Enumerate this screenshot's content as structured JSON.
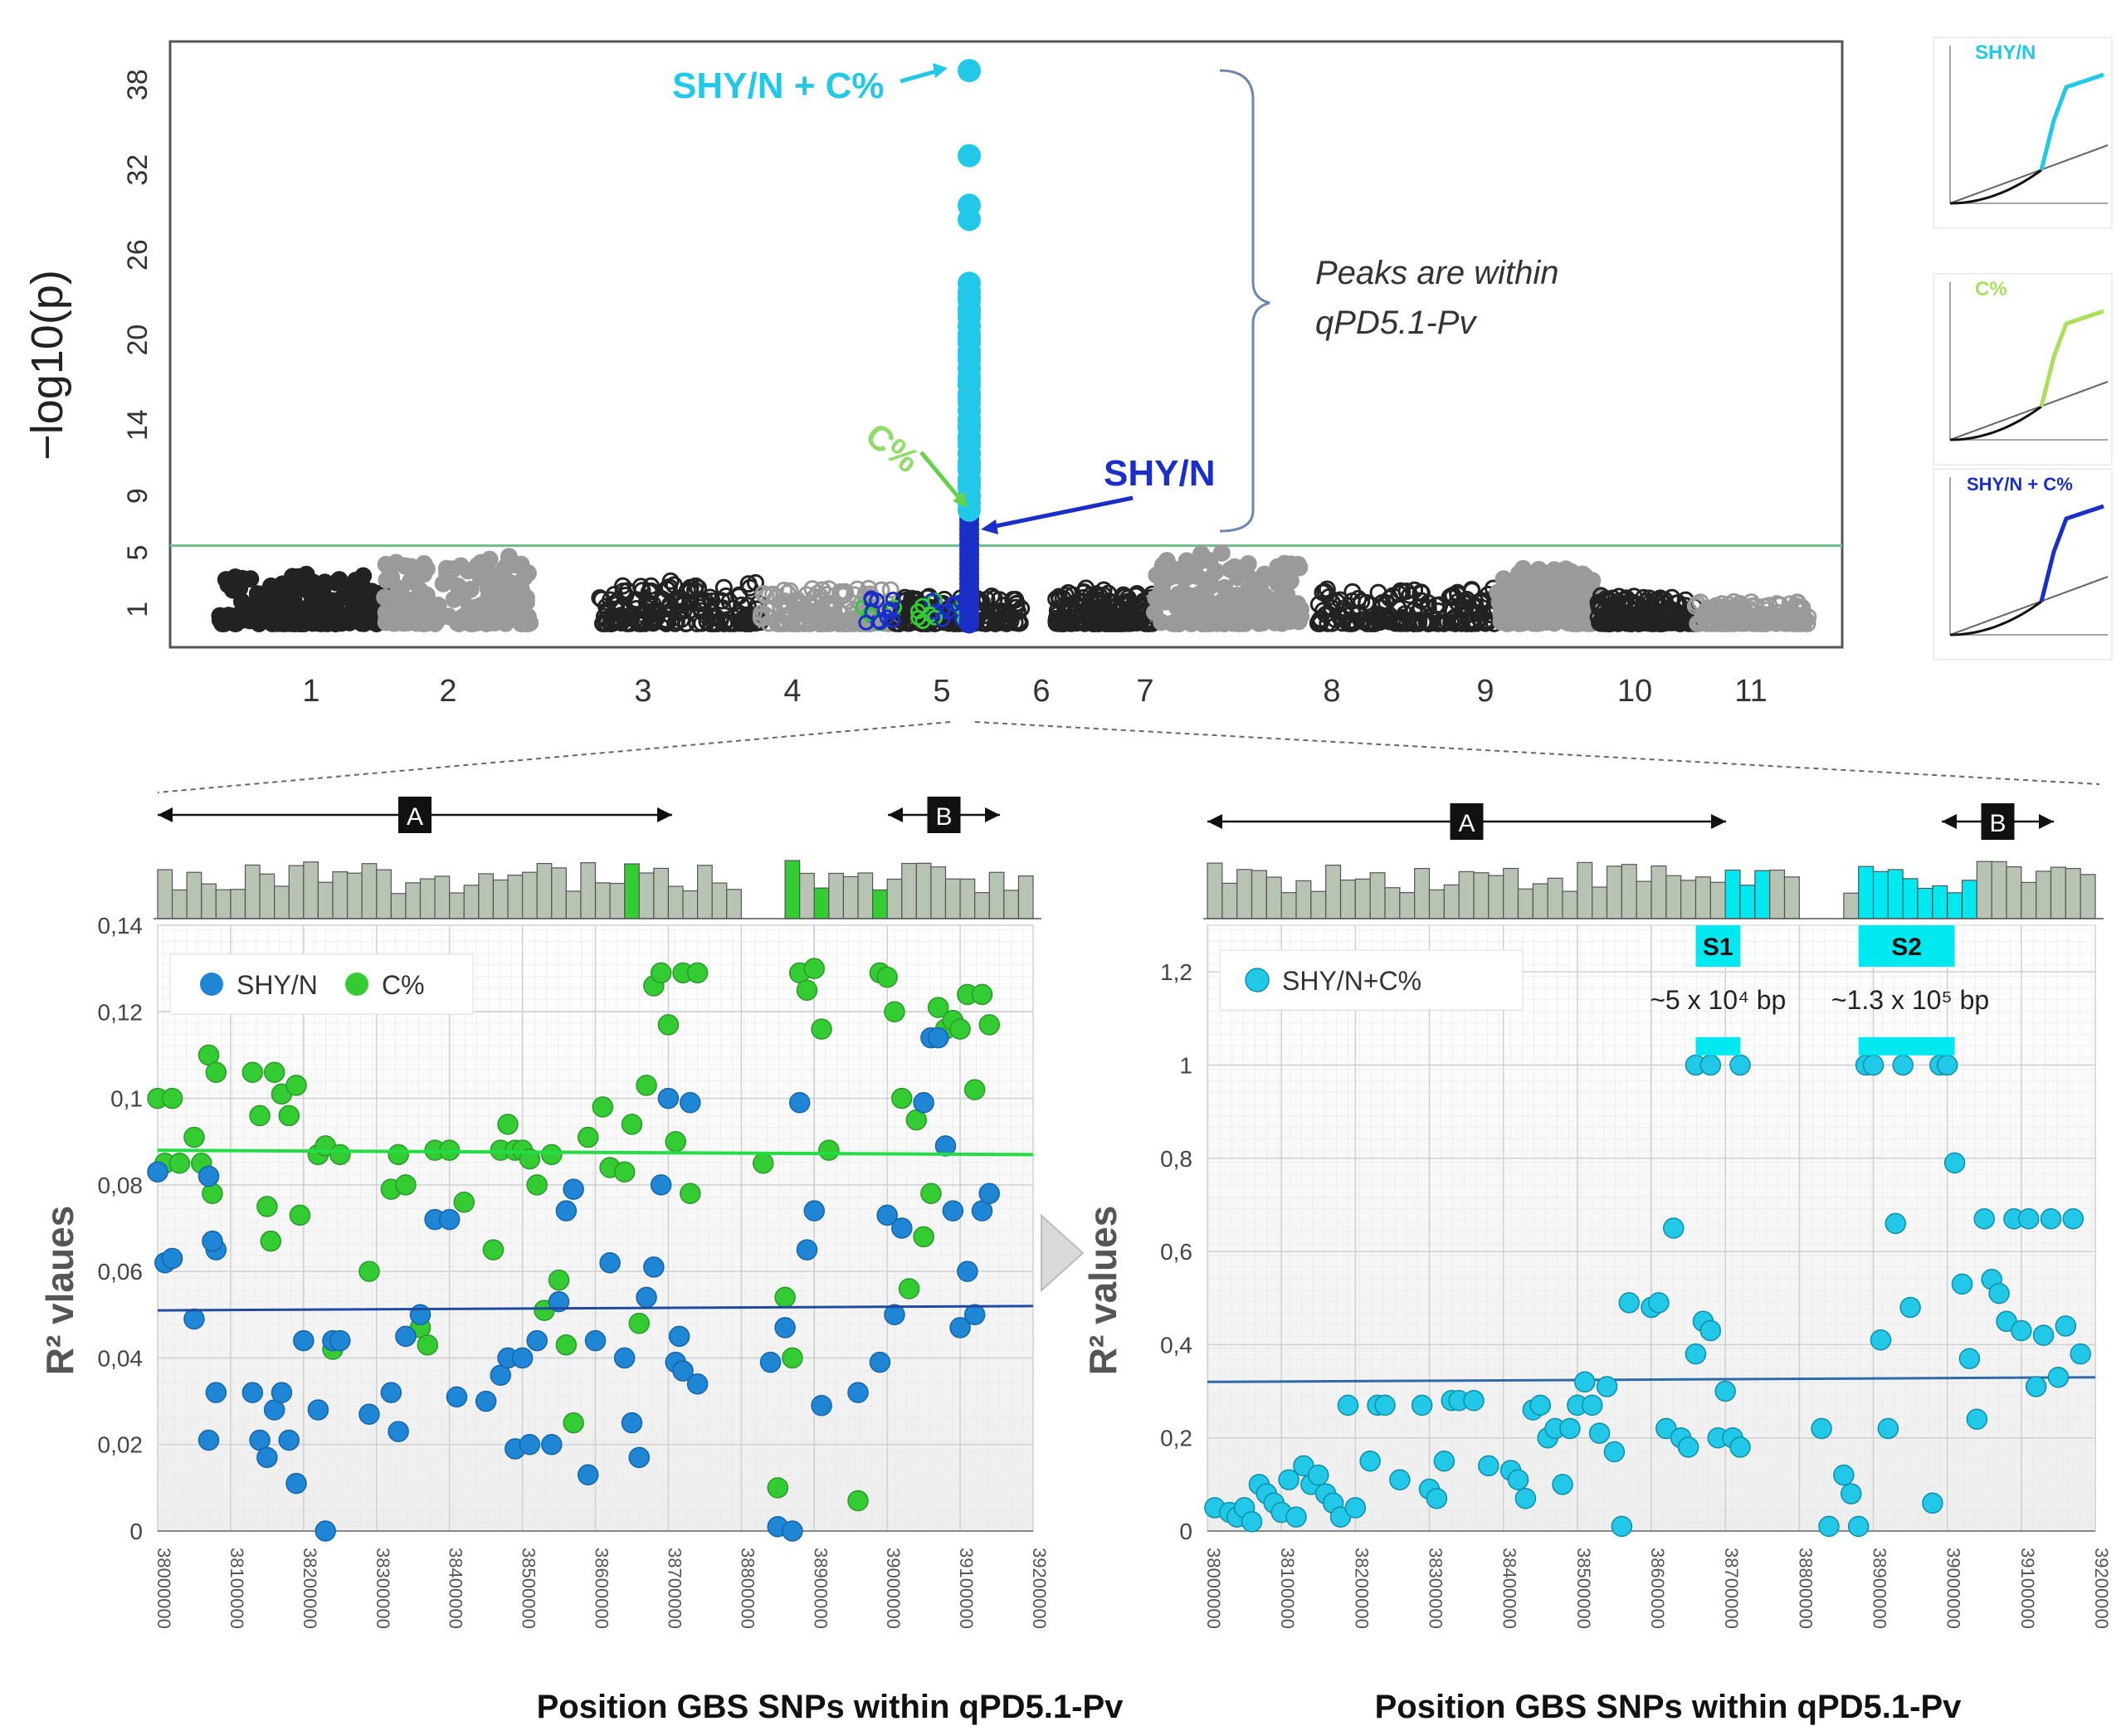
{
  "manhattan": {
    "ylabel": "−log10(p)",
    "yticks": [
      1,
      5,
      9,
      14,
      20,
      26,
      32,
      38
    ],
    "threshold": 5.5,
    "chromosomes": [
      {
        "label": "1",
        "start": 0,
        "end": 1.0,
        "max": 3.5,
        "filled": true,
        "gray": false
      },
      {
        "label": "2",
        "start": 1.0,
        "end": 1.9,
        "max": 4.8,
        "filled": true,
        "gray": true
      },
      {
        "label": "3",
        "start": 2.3,
        "end": 3.3,
        "max": 3.0,
        "filled": false,
        "gray": false
      },
      {
        "label": "4",
        "start": 3.3,
        "end": 4.1,
        "max": 2.5,
        "filled": false,
        "gray": true
      },
      {
        "label": "5",
        "start": 4.1,
        "end": 4.9,
        "max": 2.0,
        "filled": false,
        "gray": false
      },
      {
        "label": "6",
        "start": 5.1,
        "end": 5.7,
        "max": 2.5,
        "filled": false,
        "gray": false
      },
      {
        "label": "7",
        "start": 5.7,
        "end": 6.6,
        "max": 5.0,
        "filled": true,
        "gray": true
      },
      {
        "label": "8",
        "start": 6.7,
        "end": 7.8,
        "max": 2.5,
        "filled": false,
        "gray": false
      },
      {
        "label": "9",
        "start": 7.8,
        "end": 8.4,
        "max": 4.0,
        "filled": true,
        "gray": true
      },
      {
        "label": "10",
        "start": 8.4,
        "end": 9.0,
        "max": 2.0,
        "filled": false,
        "gray": false
      },
      {
        "label": "11",
        "start": 9.0,
        "end": 9.7,
        "max": 1.6,
        "filled": false,
        "gray": true
      }
    ],
    "peak_values": [
      39,
      33,
      29.5,
      28.5,
      24,
      23,
      22,
      21,
      20,
      19,
      18,
      17,
      16,
      15,
      14,
      13,
      12,
      11,
      10,
      9,
      8.5,
      8
    ],
    "labels": {
      "combined": "SHY/N + C%",
      "c": "C%",
      "sh": "SHY/N",
      "annotation_line1": "Peaks are within",
      "annotation_line2": "qPD5.1-Pv"
    },
    "qq_labels": [
      "SHY/N",
      "C%",
      "SHY/N + C%"
    ]
  },
  "left_panel": {
    "type": "scatter",
    "ylabel": "R² vlaues",
    "xlabel": "Position GBS SNPs within qPD5.1-Pv",
    "ylim": [
      0,
      0.14
    ],
    "yticks": [
      "0",
      "0,02",
      "0,04",
      "0,06",
      "0,08",
      "0,1",
      "0,12",
      "0,14"
    ],
    "xticks": [
      "38000000",
      "38100000",
      "38200000",
      "38300000",
      "38400000",
      "38500000",
      "38600000",
      "38700000",
      "38800000",
      "38900000",
      "39000000",
      "39100000",
      "39200000"
    ],
    "legend": [
      "SHY/N",
      "C%"
    ],
    "region_A": "A",
    "region_B": "B",
    "trend_c": 0.087,
    "trend_sh": 0.051,
    "sh_points": [
      [
        38000,
        0.083
      ],
      [
        38010,
        0.062
      ],
      [
        38020,
        0.063
      ],
      [
        38050,
        0.049
      ],
      [
        38070,
        0.082
      ],
      [
        38080,
        0.065
      ],
      [
        38075,
        0.067
      ],
      [
        38080,
        0.032
      ],
      [
        38070,
        0.021
      ],
      [
        38130,
        0.032
      ],
      [
        38140,
        0.021
      ],
      [
        38150,
        0.017
      ],
      [
        38160,
        0.028
      ],
      [
        38170,
        0.032
      ],
      [
        38180,
        0.021
      ],
      [
        38190,
        0.011
      ],
      [
        38200,
        0.044
      ],
      [
        38220,
        0.028
      ],
      [
        38230,
        0.0
      ],
      [
        38240,
        0.044
      ],
      [
        38250,
        0.044
      ],
      [
        38290,
        0.027
      ],
      [
        38320,
        0.032
      ],
      [
        38330,
        0.023
      ],
      [
        38340,
        0.045
      ],
      [
        38360,
        0.05
      ],
      [
        38380,
        0.072
      ],
      [
        38400,
        0.072
      ],
      [
        38410,
        0.031
      ],
      [
        38450,
        0.03
      ],
      [
        38470,
        0.036
      ],
      [
        38480,
        0.04
      ],
      [
        38490,
        0.019
      ],
      [
        38500,
        0.04
      ],
      [
        38510,
        0.02
      ],
      [
        38520,
        0.044
      ],
      [
        38540,
        0.02
      ],
      [
        38550,
        0.053
      ],
      [
        38560,
        0.074
      ],
      [
        38570,
        0.079
      ],
      [
        38590,
        0.013
      ],
      [
        38600,
        0.044
      ],
      [
        38620,
        0.062
      ],
      [
        38640,
        0.04
      ],
      [
        38650,
        0.025
      ],
      [
        38660,
        0.017
      ],
      [
        38670,
        0.054
      ],
      [
        38680,
        0.061
      ],
      [
        38690,
        0.08
      ],
      [
        38700,
        0.1
      ],
      [
        38710,
        0.039
      ],
      [
        38715,
        0.045
      ],
      [
        38720,
        0.037
      ],
      [
        38730,
        0.099
      ],
      [
        38740,
        0.034
      ],
      [
        38840,
        0.039
      ],
      [
        38850,
        0.001
      ],
      [
        38860,
        0.047
      ],
      [
        38870,
        0.0
      ],
      [
        38880,
        0.099
      ],
      [
        38890,
        0.065
      ],
      [
        38900,
        0.074
      ],
      [
        38910,
        0.029
      ],
      [
        38960,
        0.032
      ],
      [
        38990,
        0.039
      ],
      [
        39000,
        0.073
      ],
      [
        39010,
        0.05
      ],
      [
        39020,
        0.07
      ],
      [
        39050,
        0.099
      ],
      [
        39060,
        0.114
      ],
      [
        39070,
        0.114
      ],
      [
        39080,
        0.089
      ],
      [
        39090,
        0.074
      ],
      [
        39100,
        0.047
      ],
      [
        39110,
        0.06
      ],
      [
        39120,
        0.05
      ],
      [
        39130,
        0.074
      ],
      [
        39140,
        0.078
      ]
    ],
    "c_points": [
      [
        38000,
        0.1
      ],
      [
        38010,
        0.085
      ],
      [
        38020,
        0.1
      ],
      [
        38030,
        0.085
      ],
      [
        38050,
        0.091
      ],
      [
        38060,
        0.085
      ],
      [
        38070,
        0.11
      ],
      [
        38075,
        0.078
      ],
      [
        38080,
        0.106
      ],
      [
        38130,
        0.106
      ],
      [
        38140,
        0.096
      ],
      [
        38150,
        0.075
      ],
      [
        38155,
        0.067
      ],
      [
        38160,
        0.106
      ],
      [
        38170,
        0.101
      ],
      [
        38180,
        0.096
      ],
      [
        38190,
        0.103
      ],
      [
        38195,
        0.073
      ],
      [
        38220,
        0.087
      ],
      [
        38230,
        0.089
      ],
      [
        38240,
        0.042
      ],
      [
        38250,
        0.087
      ],
      [
        38290,
        0.06
      ],
      [
        38320,
        0.079
      ],
      [
        38330,
        0.087
      ],
      [
        38340,
        0.08
      ],
      [
        38360,
        0.047
      ],
      [
        38370,
        0.043
      ],
      [
        38380,
        0.088
      ],
      [
        38400,
        0.088
      ],
      [
        38420,
        0.076
      ],
      [
        38460,
        0.065
      ],
      [
        38470,
        0.088
      ],
      [
        38480,
        0.094
      ],
      [
        38490,
        0.088
      ],
      [
        38500,
        0.088
      ],
      [
        38510,
        0.086
      ],
      [
        38520,
        0.08
      ],
      [
        38530,
        0.051
      ],
      [
        38540,
        0.087
      ],
      [
        38550,
        0.058
      ],
      [
        38560,
        0.043
      ],
      [
        38570,
        0.025
      ],
      [
        38590,
        0.091
      ],
      [
        38610,
        0.098
      ],
      [
        38620,
        0.084
      ],
      [
        38640,
        0.083
      ],
      [
        38650,
        0.094
      ],
      [
        38660,
        0.048
      ],
      [
        38670,
        0.103
      ],
      [
        38680,
        0.126
      ],
      [
        38690,
        0.129
      ],
      [
        38700,
        0.117
      ],
      [
        38710,
        0.09
      ],
      [
        38720,
        0.129
      ],
      [
        38730,
        0.078
      ],
      [
        38740,
        0.129
      ],
      [
        38830,
        0.085
      ],
      [
        38850,
        0.01
      ],
      [
        38860,
        0.054
      ],
      [
        38870,
        0.04
      ],
      [
        38880,
        0.129
      ],
      [
        38890,
        0.125
      ],
      [
        38900,
        0.13
      ],
      [
        38910,
        0.116
      ],
      [
        38920,
        0.088
      ],
      [
        38960,
        0.007
      ],
      [
        38990,
        0.129
      ],
      [
        39000,
        0.128
      ],
      [
        39010,
        0.12
      ],
      [
        39020,
        0.1
      ],
      [
        39030,
        0.056
      ],
      [
        39040,
        0.095
      ],
      [
        39050,
        0.068
      ],
      [
        39060,
        0.078
      ],
      [
        39070,
        0.121
      ],
      [
        39080,
        0.116
      ],
      [
        39090,
        0.118
      ],
      [
        39100,
        0.116
      ],
      [
        39110,
        0.124
      ],
      [
        39120,
        0.102
      ],
      [
        39130,
        0.124
      ],
      [
        39140,
        0.117
      ]
    ]
  },
  "right_panel": {
    "type": "scatter",
    "ylabel": "R² values",
    "xlabel": "Position GBS SNPs within qPD5.1-Pv",
    "ylim": [
      0,
      1.3
    ],
    "yticks": [
      "0",
      "0,2",
      "0,4",
      "0,6",
      "0,8",
      "1",
      "1,2"
    ],
    "xticks": [
      "38000000",
      "38100000",
      "38200000",
      "38300000",
      "38400000",
      "38500000",
      "38600000",
      "38700000",
      "38800000",
      "38900000",
      "39000000",
      "39100000",
      "39200000"
    ],
    "legend": [
      "SHY/N+C%"
    ],
    "region_A": "A",
    "region_B": "B",
    "s1_label": "S1",
    "s2_label": "S2",
    "s1_size": "~5 x 10⁴ bp",
    "s2_size": "~1.3 x 10⁵ bp",
    "trend": [
      0.32,
      0.33
    ],
    "points": [
      [
        38010,
        0.05
      ],
      [
        38030,
        0.04
      ],
      [
        38040,
        0.03
      ],
      [
        38050,
        0.05
      ],
      [
        38060,
        0.02
      ],
      [
        38070,
        0.1
      ],
      [
        38080,
        0.08
      ],
      [
        38090,
        0.06
      ],
      [
        38100,
        0.04
      ],
      [
        38110,
        0.11
      ],
      [
        38120,
        0.03
      ],
      [
        38130,
        0.14
      ],
      [
        38140,
        0.1
      ],
      [
        38150,
        0.12
      ],
      [
        38160,
        0.08
      ],
      [
        38170,
        0.06
      ],
      [
        38180,
        0.03
      ],
      [
        38190,
        0.27
      ],
      [
        38200,
        0.05
      ],
      [
        38220,
        0.15
      ],
      [
        38230,
        0.27
      ],
      [
        38240,
        0.27
      ],
      [
        38260,
        0.11
      ],
      [
        38290,
        0.27
      ],
      [
        38300,
        0.09
      ],
      [
        38310,
        0.07
      ],
      [
        38320,
        0.15
      ],
      [
        38330,
        0.28
      ],
      [
        38340,
        0.28
      ],
      [
        38360,
        0.28
      ],
      [
        38380,
        0.14
      ],
      [
        38410,
        0.13
      ],
      [
        38420,
        0.11
      ],
      [
        38430,
        0.07
      ],
      [
        38440,
        0.26
      ],
      [
        38450,
        0.27
      ],
      [
        38460,
        0.2
      ],
      [
        38470,
        0.22
      ],
      [
        38480,
        0.1
      ],
      [
        38490,
        0.22
      ],
      [
        38500,
        0.27
      ],
      [
        38510,
        0.32
      ],
      [
        38520,
        0.27
      ],
      [
        38530,
        0.21
      ],
      [
        38540,
        0.31
      ],
      [
        38550,
        0.17
      ],
      [
        38560,
        0.01
      ],
      [
        38570,
        0.49
      ],
      [
        38600,
        0.48
      ],
      [
        38610,
        0.49
      ],
      [
        38620,
        0.22
      ],
      [
        38630,
        0.65
      ],
      [
        38640,
        0.2
      ],
      [
        38650,
        0.18
      ],
      [
        38660,
        0.38
      ],
      [
        38670,
        0.45
      ],
      [
        38680,
        0.43
      ],
      [
        38690,
        0.2
      ],
      [
        38700,
        0.3
      ],
      [
        38710,
        0.2
      ],
      [
        38720,
        0.18
      ],
      [
        38660,
        1.0
      ],
      [
        38680,
        1.0
      ],
      [
        38720,
        1.0
      ],
      [
        38830,
        0.22
      ],
      [
        38840,
        0.01
      ],
      [
        38860,
        0.12
      ],
      [
        38870,
        0.08
      ],
      [
        38880,
        0.01
      ],
      [
        38890,
        1.0
      ],
      [
        38900,
        1.0
      ],
      [
        38910,
        0.41
      ],
      [
        38920,
        0.22
      ],
      [
        38930,
        0.66
      ],
      [
        38940,
        1.0
      ],
      [
        38950,
        0.48
      ],
      [
        38980,
        0.06
      ],
      [
        38990,
        1.0
      ],
      [
        39000,
        1.0
      ],
      [
        39010,
        0.79
      ],
      [
        39020,
        0.53
      ],
      [
        39030,
        0.37
      ],
      [
        39040,
        0.24
      ],
      [
        39050,
        0.67
      ],
      [
        39060,
        0.54
      ],
      [
        39070,
        0.51
      ],
      [
        39080,
        0.45
      ],
      [
        39090,
        0.67
      ],
      [
        39100,
        0.43
      ],
      [
        39110,
        0.67
      ],
      [
        39120,
        0.31
      ],
      [
        39130,
        0.42
      ],
      [
        39140,
        0.67
      ],
      [
        39150,
        0.33
      ],
      [
        39160,
        0.44
      ],
      [
        39170,
        0.67
      ],
      [
        39180,
        0.38
      ]
    ]
  },
  "colors": {
    "sh_dark_blue": "#1a2fc8",
    "sh_blue": "#1f86d6",
    "c_green": "#33cc33",
    "cyan": "#22c8e8",
    "bright_cyan": "#00e8f0",
    "dark_points": "#222222",
    "gray_points": "#9a9a9a",
    "hist_fill": "#b7c4b3",
    "threshold": "#6fbf8f"
  }
}
